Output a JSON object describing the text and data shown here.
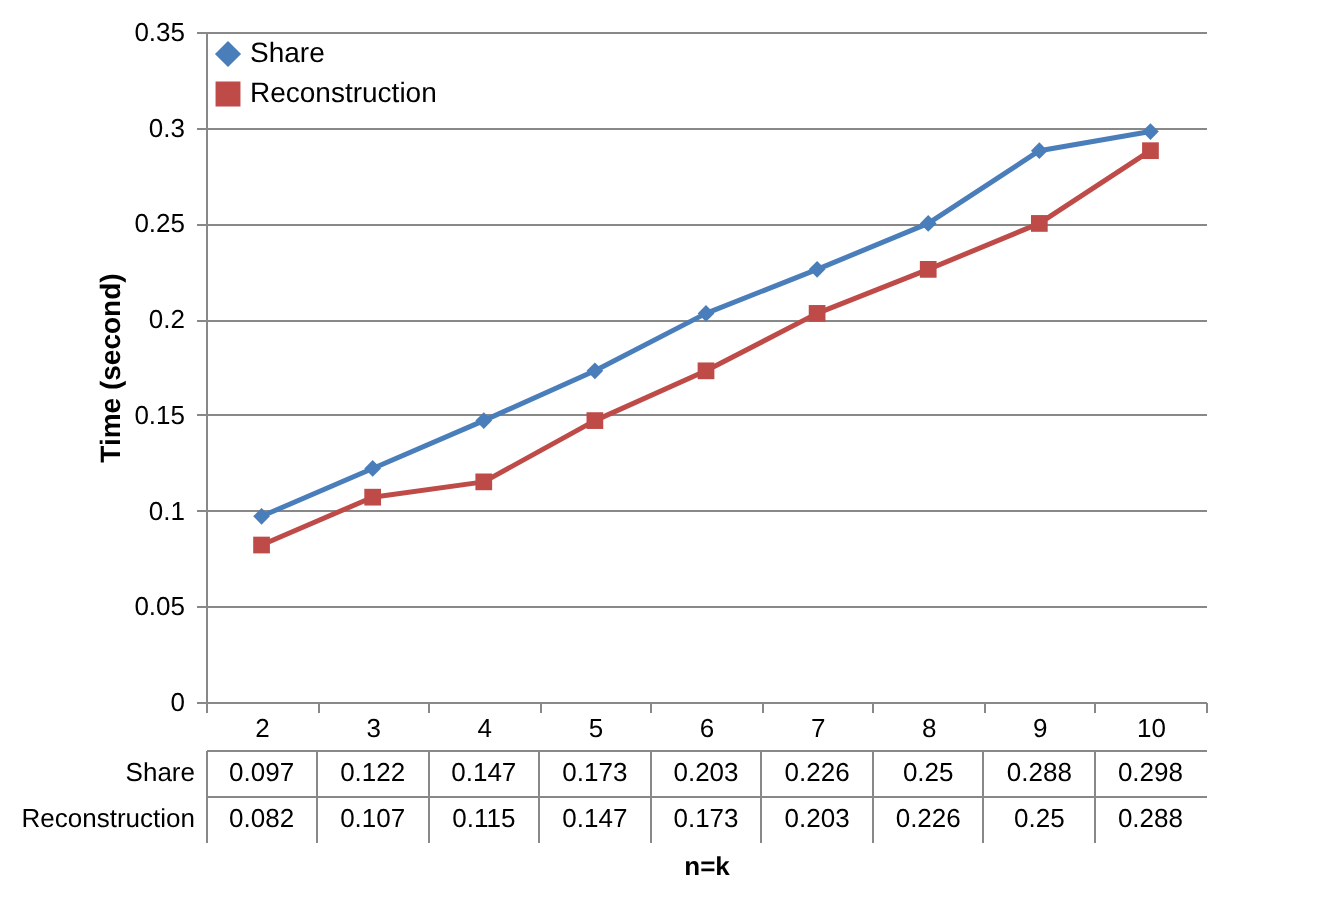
{
  "chart_data": {
    "type": "line",
    "xlabel": "n=k",
    "ylabel": "Time (second)",
    "categories": [
      "2",
      "3",
      "4",
      "5",
      "6",
      "7",
      "8",
      "9",
      "10"
    ],
    "series": [
      {
        "name": "Share",
        "color": "#4a7ebb",
        "marker": "diamond",
        "values": [
          0.097,
          0.122,
          0.147,
          0.173,
          0.203,
          0.226,
          0.25,
          0.288,
          0.298
        ]
      },
      {
        "name": "Reconstruction",
        "color": "#be4b48",
        "marker": "square",
        "values": [
          0.082,
          0.107,
          0.115,
          0.147,
          0.173,
          0.203,
          0.226,
          0.25,
          0.288
        ]
      }
    ],
    "ylim": [
      0,
      0.35
    ],
    "yticks": [
      0,
      0.05,
      0.1,
      0.15,
      0.2,
      0.25,
      0.3,
      0.35
    ],
    "grid": "y",
    "legend": "top left",
    "data_labels": true
  }
}
